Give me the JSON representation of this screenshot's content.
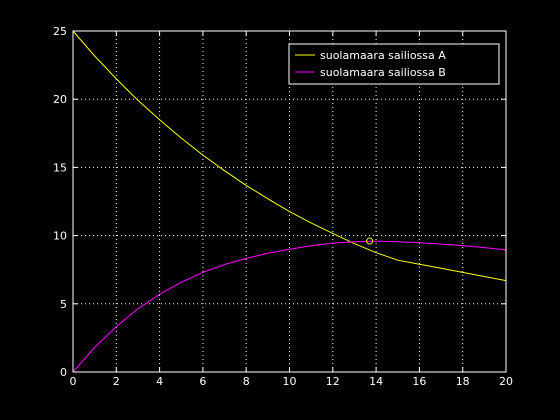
{
  "chart_data": {
    "type": "line",
    "title": "",
    "xlabel": "",
    "ylabel": "",
    "xlim": [
      0,
      20
    ],
    "ylim": [
      0,
      25
    ],
    "xticks": [
      0,
      2,
      4,
      6,
      8,
      10,
      12,
      14,
      16,
      18,
      20
    ],
    "yticks": [
      0,
      5,
      10,
      15,
      20,
      25
    ],
    "grid": true,
    "legend_position": "top-right",
    "background": "#000000",
    "axes_color": "#ffffff",
    "series": [
      {
        "name": "suolamaara sailiossa A",
        "color": "#ffff00",
        "x": [
          0,
          1,
          2,
          3,
          4,
          5,
          6,
          7,
          8,
          9,
          10,
          11,
          12,
          13,
          14,
          15,
          16,
          17,
          18,
          19,
          20
        ],
        "y": [
          25.0,
          23.17,
          21.49,
          19.92,
          18.49,
          17.15,
          15.9,
          14.76,
          13.68,
          12.7,
          11.76,
          10.93,
          10.16,
          9.41,
          8.75,
          8.2,
          7.9,
          7.6,
          7.3,
          7.0,
          6.7
        ]
      },
      {
        "name": "suolamaara sailiossa B",
        "color": "#ff00ff",
        "x": [
          0,
          1,
          2,
          3,
          4,
          5,
          6,
          7,
          8,
          9,
          10,
          11,
          12,
          13,
          14,
          15,
          16,
          17,
          18,
          19,
          20
        ],
        "y": [
          0.0,
          1.8,
          3.33,
          4.63,
          5.7,
          6.58,
          7.3,
          7.88,
          8.33,
          8.7,
          9.0,
          9.25,
          9.45,
          9.55,
          9.6,
          9.55,
          9.47,
          9.38,
          9.27,
          9.12,
          8.95
        ]
      }
    ],
    "markers": [
      {
        "x": 13.7,
        "y": 9.6,
        "color": "#ffff00",
        "shape": "circle"
      }
    ]
  }
}
